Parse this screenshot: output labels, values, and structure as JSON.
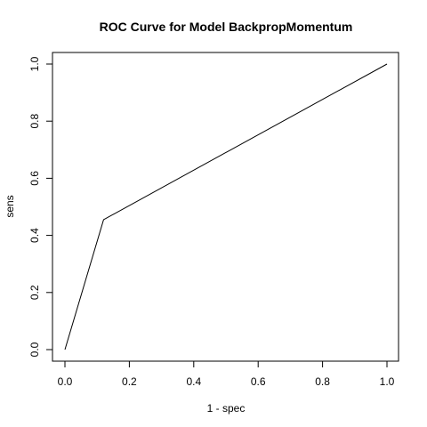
{
  "chart_data": {
    "type": "line",
    "title": "ROC Curve for Model BackpropMomentum",
    "xlabel": "1 - spec",
    "ylabel": "sens",
    "xlim": [
      0.0,
      1.0
    ],
    "ylim": [
      0.0,
      1.0
    ],
    "x_ticks": [
      0.0,
      0.2,
      0.4,
      0.6,
      0.8,
      1.0
    ],
    "y_ticks": [
      0.0,
      0.2,
      0.4,
      0.6,
      0.8,
      1.0
    ],
    "x_tick_labels": [
      "0.0",
      "0.2",
      "0.4",
      "0.6",
      "0.8",
      "1.0"
    ],
    "y_tick_labels": [
      "0.0",
      "0.2",
      "0.4",
      "0.6",
      "0.8",
      "1.0"
    ],
    "grid": false,
    "series": [
      {
        "x": [
          0.0,
          0.12,
          1.0
        ],
        "y": [
          0.0,
          0.455,
          1.0
        ],
        "color": "#000000"
      }
    ]
  }
}
